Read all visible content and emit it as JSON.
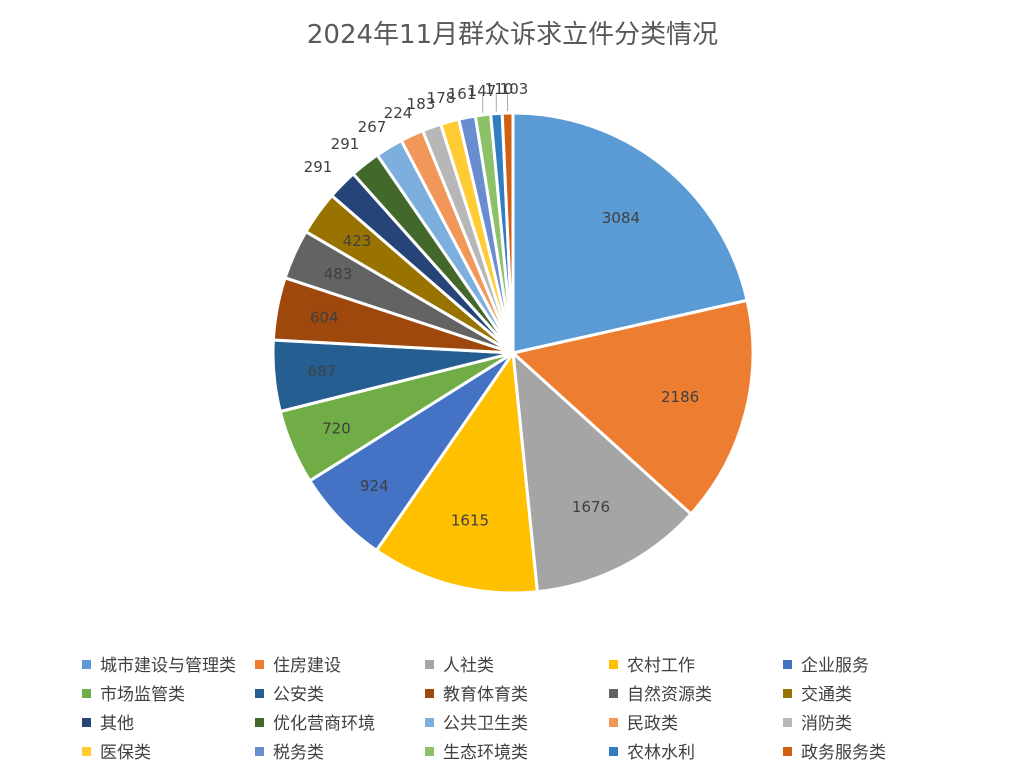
{
  "chart_data": {
    "type": "pie",
    "title": "2024年11月群众诉求立件分类情况",
    "legend_position": "bottom",
    "slices": [
      {
        "name": "城市建设与管理类",
        "value": 3084,
        "color": "#5B9BD5"
      },
      {
        "name": "住房建设",
        "value": 2186,
        "color": "#ED7D31"
      },
      {
        "name": "人社类",
        "value": 1676,
        "color": "#A5A5A5"
      },
      {
        "name": "农村工作",
        "value": 1615,
        "color": "#FFC000"
      },
      {
        "name": "企业服务",
        "value": 924,
        "color": "#4472C4"
      },
      {
        "name": "市场监管类",
        "value": 720,
        "color": "#70AD47"
      },
      {
        "name": "公安类",
        "value": 687,
        "color": "#255E91"
      },
      {
        "name": "教育体育类",
        "value": 604,
        "color": "#9E480E"
      },
      {
        "name": "自然资源类",
        "value": 483,
        "color": "#636363"
      },
      {
        "name": "交通类",
        "value": 423,
        "color": "#997300"
      },
      {
        "name": "其他",
        "value": 291,
        "color": "#264478"
      },
      {
        "name": "优化营商环境",
        "value": 291,
        "color": "#43682B"
      },
      {
        "name": "公共卫生类",
        "value": 267,
        "color": "#7CAFDD"
      },
      {
        "name": "民政类",
        "value": 224,
        "color": "#F1975A"
      },
      {
        "name": "消防类",
        "value": 183,
        "color": "#B7B7B7"
      },
      {
        "name": "医保类",
        "value": 178,
        "color": "#FFCD33"
      },
      {
        "name": "税务类",
        "value": 161,
        "color": "#698ED0"
      },
      {
        "name": "生态环境类",
        "value": 147,
        "color": "#8CC168"
      },
      {
        "name": "农林水利",
        "value": 110,
        "color": "#327DC2"
      },
      {
        "name": "政务服务类",
        "value": 103,
        "color": "#D26012"
      }
    ]
  }
}
